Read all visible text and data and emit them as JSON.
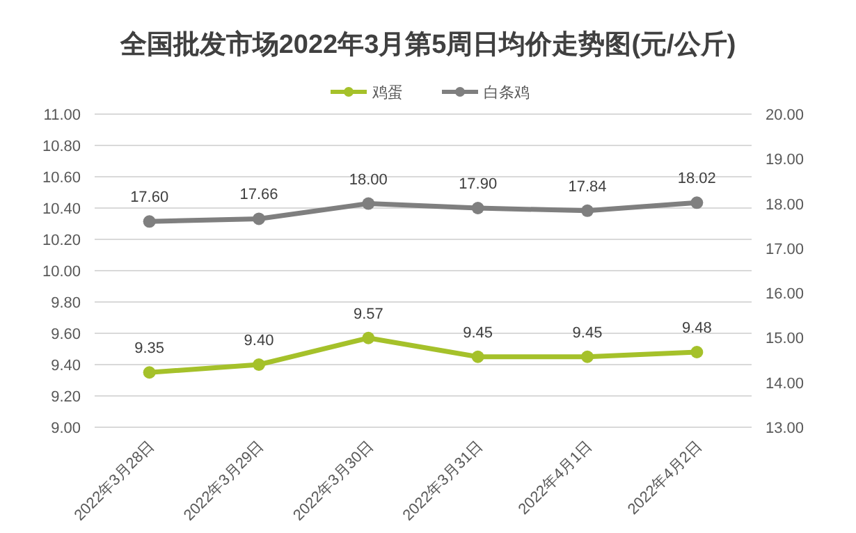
{
  "chart_data": {
    "type": "line",
    "title": "全国批发市场2022年3月第5周日均价走势图(元/公斤)",
    "categories": [
      "2022年3月28日",
      "2022年3月29日",
      "2022年3月30日",
      "2022年3月31日",
      "2022年4月1日",
      "2022年4月2日"
    ],
    "series": [
      {
        "name": "鸡蛋",
        "color": "#a5c12a",
        "values": [
          9.35,
          9.4,
          9.57,
          9.45,
          9.45,
          9.48
        ],
        "value_labels": [
          "9.35",
          "9.40",
          "9.57",
          "9.45",
          "9.45",
          "9.48"
        ]
      },
      {
        "name": "白条鸡",
        "color": "#7f7f7f",
        "axis": "y2",
        "values": [
          17.6,
          17.66,
          18.0,
          17.9,
          17.84,
          18.02
        ],
        "value_labels": [
          "17.60",
          "17.66",
          "18.00",
          "17.90",
          "17.84",
          "18.02"
        ]
      }
    ],
    "ylim": [
      9,
      11
    ],
    "yticks": [
      {
        "value": 9,
        "label": "9.00"
      },
      {
        "value": 9.2,
        "label": "9.20"
      },
      {
        "value": 9.4,
        "label": "9.40"
      },
      {
        "value": 9.6,
        "label": "9.60"
      },
      {
        "value": 9.8,
        "label": "9.80"
      },
      {
        "value": 10,
        "label": "10.00"
      },
      {
        "value": 10.2,
        "label": "10.20"
      },
      {
        "value": 10.4,
        "label": "10.40"
      },
      {
        "value": 10.6,
        "label": "10.60"
      },
      {
        "value": 10.8,
        "label": "10.80"
      },
      {
        "value": 11,
        "label": "11.00"
      }
    ],
    "y2lim": [
      13,
      20
    ],
    "y2ticks": [
      {
        "value": 13,
        "label": "13.00"
      },
      {
        "value": 14,
        "label": "14.00"
      },
      {
        "value": 15,
        "label": "15.00"
      },
      {
        "value": 16,
        "label": "16.00"
      },
      {
        "value": 17,
        "label": "17.00"
      },
      {
        "value": 18,
        "label": "18.00"
      },
      {
        "value": 19,
        "label": "19.00"
      },
      {
        "value": 20,
        "label": "20.00"
      }
    ],
    "grid": "y",
    "legend": "top",
    "marker": "circle"
  }
}
